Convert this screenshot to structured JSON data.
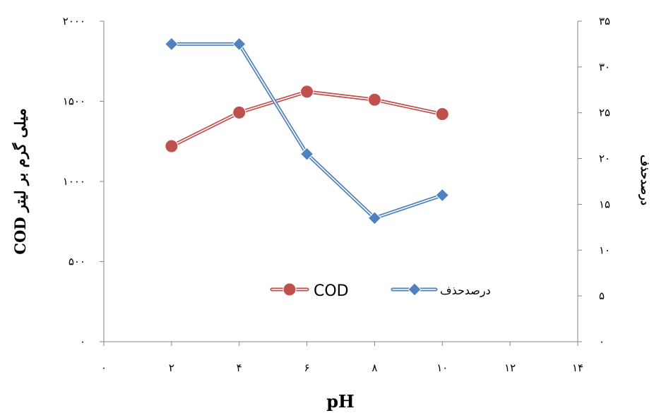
{
  "chart_data": {
    "type": "line",
    "x": [
      2,
      4,
      6,
      8,
      10
    ],
    "xlabel": "pH",
    "ylabel": "COD میلی گرم بر لیتر",
    "y2label": "درصدحذف",
    "xlim": [
      0,
      14
    ],
    "ylim": [
      0,
      2000
    ],
    "y2lim": [
      0,
      35
    ],
    "x_ticks": [
      0,
      2,
      4,
      6,
      8,
      10,
      12,
      14
    ],
    "x_tick_labels": [
      "۰",
      "۲",
      "۴",
      "۶",
      "۸",
      "۱۰",
      "۱۲",
      "۱۴"
    ],
    "y_ticks": [
      0,
      500,
      1000,
      1500,
      2000
    ],
    "y_tick_labels": [
      "۰",
      "۵۰۰",
      "۱۰۰۰",
      "۱۵۰۰",
      "۲۰۰۰"
    ],
    "y2_ticks": [
      0,
      5,
      10,
      15,
      20,
      25,
      30,
      35
    ],
    "y2_tick_labels": [
      "۰",
      "۵",
      "۱۰",
      "۱۵",
      "۲۰",
      "۲۵",
      "۳۰",
      "۳۵"
    ],
    "grid": false,
    "legend_position": "center-right",
    "series": [
      {
        "name": "COD",
        "axis": "left",
        "marker": "circle",
        "color": "#C0504D",
        "values": [
          1220,
          1430,
          1560,
          1510,
          1420
        ]
      },
      {
        "name": "درصدحذف",
        "axis": "right",
        "marker": "diamond",
        "color": "#4F81BD",
        "values": [
          32.5,
          32.5,
          20.5,
          13.5,
          16
        ]
      }
    ]
  }
}
